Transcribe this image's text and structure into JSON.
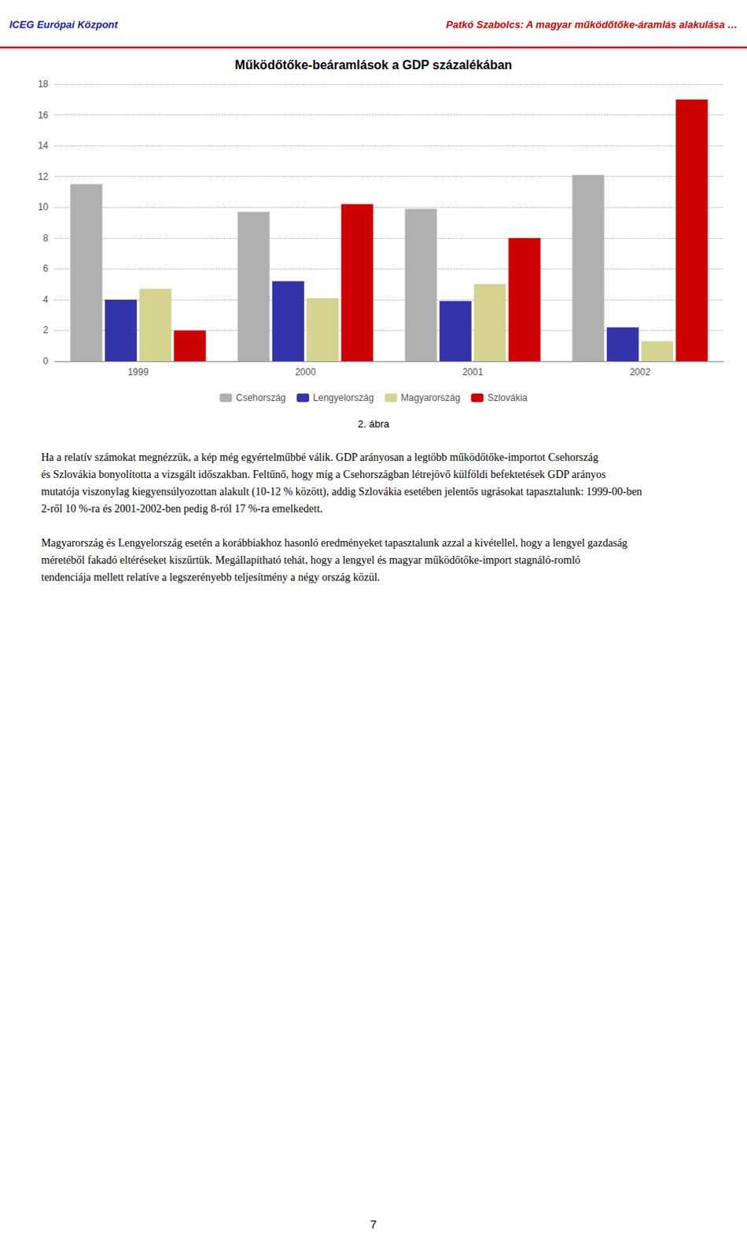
{
  "chart_data": {
    "type": "bar",
    "title": "Működőtőke-beáramlások a GDP százalékában",
    "categories": [
      "1999",
      "2000",
      "2001",
      "2002"
    ],
    "series": [
      {
        "name": "Csehország",
        "color": "#b0b0b0",
        "values": [
          11.5,
          9.7,
          9.9,
          12.1
        ]
      },
      {
        "name": "Lengyelország",
        "color": "#3333aa",
        "values": [
          4.0,
          5.2,
          3.9,
          2.2
        ]
      },
      {
        "name": "Magyarország",
        "color": "#d4d490",
        "values": [
          4.7,
          4.1,
          5.0,
          1.3
        ]
      },
      {
        "name": "Szlovákia",
        "color": "#cc0000",
        "values": [
          2.0,
          10.2,
          8.0,
          17.0
        ]
      }
    ],
    "ylim": [
      0,
      18
    ],
    "yticks": [
      0,
      2,
      4,
      6,
      8,
      10,
      12,
      14,
      16,
      18
    ],
    "grid": true,
    "legend": "bottom",
    "annotations": [
      "ICEG Európai Központ",
      "Patkó Szabolcs: A magyar működőtőke-áramlás alakulása …",
      "2. ábra",
      "Ha a relatív számokat megnézzük, a kép még egyértelműbbé válik. GDP arányosan a legtöbb működőtőke-importot Csehország és Szlovákia bonyolította a vizsgált időszakban. Feltűnő, hogy míg a Csehországban létrejövő külföldi befektetések GDP arányos mutatója viszonylag kiegyensúlyozottan alakult (10-12 % között), addig Szlovákia esetében jelentős ugrásokat tapasztalunk: 1999-00-ben 2-ről 10 %-ra és 2001-2002-ben pedig 8-ról 17 %-ra emelkedett.",
      "Magyarország és Lengyelország esetén a korábbiakhoz hasonló eredményeket tapasztalunk azzal a kivétellel, hogy a lengyel gazdaság méretéből fakadó eltéréseket kiszűrtük. Megállapítható tehát, hogy a lengyel és magyar működőtőke-import stagnáló-romló tendenciája mellett relatíve a legszerényebb teljesítmény a négy ország közül.",
      "7"
    ]
  }
}
